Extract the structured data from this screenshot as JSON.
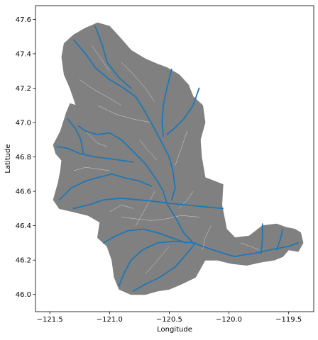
{
  "chart_data": {
    "type": "map",
    "xlabel": "Longitude",
    "ylabel": "Latitude",
    "xlim": [
      -121.62,
      -119.29
    ],
    "ylim": [
      45.9,
      47.68
    ],
    "x_ticks": [
      -121.5,
      -121.0,
      -120.5,
      -120.0,
      -119.5
    ],
    "x_tick_labels": [
      "−121.5",
      "−121.0",
      "−120.5",
      "−120.0",
      "−119.5"
    ],
    "y_ticks": [
      46.0,
      46.2,
      46.4,
      46.6,
      46.8,
      47.0,
      47.2,
      47.4,
      47.6
    ],
    "y_tick_labels": [
      "46.0",
      "46.2",
      "46.4",
      "46.6",
      "46.8",
      "47.0",
      "47.2",
      "47.4",
      "47.6"
    ],
    "grid": false,
    "colors": {
      "basin_fill": "#808080",
      "major_river": "#1f77b4",
      "minor_stream": "#d4d4d4"
    },
    "basin_boundary": [
      [
        -121.47,
        46.87
      ],
      [
        -121.41,
        46.95
      ],
      [
        -121.36,
        47.06
      ],
      [
        -121.33,
        47.11
      ],
      [
        -121.28,
        47.1
      ],
      [
        -121.33,
        47.2
      ],
      [
        -121.38,
        47.28
      ],
      [
        -121.4,
        47.38
      ],
      [
        -121.38,
        47.46
      ],
      [
        -121.3,
        47.51
      ],
      [
        -121.2,
        47.55
      ],
      [
        -121.1,
        47.58
      ],
      [
        -121.0,
        47.56
      ],
      [
        -120.92,
        47.5
      ],
      [
        -120.82,
        47.42
      ],
      [
        -120.7,
        47.37
      ],
      [
        -120.6,
        47.34
      ],
      [
        -120.52,
        47.32
      ],
      [
        -120.42,
        47.28
      ],
      [
        -120.34,
        47.22
      ],
      [
        -120.3,
        47.15
      ],
      [
        -120.22,
        47.1
      ],
      [
        -120.2,
        47.0
      ],
      [
        -120.24,
        46.9
      ],
      [
        -120.23,
        46.8
      ],
      [
        -120.2,
        46.68
      ],
      [
        -120.05,
        46.64
      ],
      [
        -120.06,
        46.52
      ],
      [
        -120.02,
        46.38
      ],
      [
        -119.95,
        46.33
      ],
      [
        -119.83,
        46.34
      ],
      [
        -119.72,
        46.4
      ],
      [
        -119.6,
        46.41
      ],
      [
        -119.52,
        46.39
      ],
      [
        -119.45,
        46.38
      ],
      [
        -119.4,
        46.36
      ],
      [
        -119.38,
        46.3
      ],
      [
        -119.42,
        46.25
      ],
      [
        -119.5,
        46.26
      ],
      [
        -119.55,
        46.22
      ],
      [
        -119.62,
        46.2
      ],
      [
        -119.72,
        46.19
      ],
      [
        -119.85,
        46.17
      ],
      [
        -119.98,
        46.18
      ],
      [
        -120.1,
        46.2
      ],
      [
        -120.2,
        46.2
      ],
      [
        -120.28,
        46.1
      ],
      [
        -120.4,
        46.06
      ],
      [
        -120.5,
        46.03
      ],
      [
        -120.6,
        46.02
      ],
      [
        -120.7,
        46.0
      ],
      [
        -120.82,
        46.0
      ],
      [
        -120.92,
        46.03
      ],
      [
        -120.96,
        46.1
      ],
      [
        -120.98,
        46.2
      ],
      [
        -121.02,
        46.28
      ],
      [
        -121.1,
        46.33
      ],
      [
        -121.08,
        46.42
      ],
      [
        -121.18,
        46.46
      ],
      [
        -121.3,
        46.48
      ],
      [
        -121.42,
        46.5
      ],
      [
        -121.47,
        46.55
      ],
      [
        -121.43,
        46.65
      ],
      [
        -121.41,
        46.72
      ],
      [
        -121.4,
        46.78
      ],
      [
        -121.45,
        46.82
      ],
      [
        -121.47,
        46.87
      ]
    ],
    "major_rivers": [
      [
        [
          -121.26,
          46.98
        ],
        [
          -121.2,
          46.95
        ],
        [
          -121.1,
          46.93
        ],
        [
          -121.0,
          46.94
        ],
        [
          -120.9,
          46.9
        ],
        [
          -120.8,
          46.83
        ],
        [
          -120.7,
          46.76
        ],
        [
          -120.6,
          46.66
        ],
        [
          -120.55,
          46.6
        ],
        [
          -120.52,
          46.53
        ],
        [
          -120.45,
          46.45
        ],
        [
          -120.38,
          46.36
        ],
        [
          -120.3,
          46.3
        ],
        [
          -120.18,
          46.27
        ],
        [
          -120.05,
          46.24
        ],
        [
          -119.95,
          46.22
        ],
        [
          -119.88,
          46.23
        ],
        [
          -119.78,
          46.24
        ],
        [
          -119.65,
          46.26
        ],
        [
          -119.5,
          46.28
        ],
        [
          -119.42,
          46.3
        ]
      ],
      [
        [
          -121.3,
          47.48
        ],
        [
          -121.2,
          47.4
        ],
        [
          -121.12,
          47.32
        ],
        [
          -121.0,
          47.25
        ],
        [
          -120.88,
          47.2
        ],
        [
          -120.78,
          47.15
        ],
        [
          -120.7,
          47.06
        ],
        [
          -120.62,
          46.96
        ],
        [
          -120.56,
          46.88
        ],
        [
          -120.5,
          46.8
        ],
        [
          -120.47,
          46.72
        ],
        [
          -120.45,
          46.62
        ],
        [
          -120.48,
          46.55
        ]
      ],
      [
        [
          -121.12,
          47.56
        ],
        [
          -121.06,
          47.45
        ],
        [
          -121.02,
          47.35
        ],
        [
          -120.92,
          47.26
        ],
        [
          -120.82,
          47.2
        ]
      ],
      [
        [
          -120.48,
          47.31
        ],
        [
          -120.52,
          47.2
        ],
        [
          -120.55,
          47.1
        ],
        [
          -120.56,
          47.0
        ],
        [
          -120.55,
          46.92
        ]
      ],
      [
        [
          -120.25,
          47.2
        ],
        [
          -120.3,
          47.1
        ],
        [
          -120.38,
          47.02
        ],
        [
          -120.45,
          46.97
        ],
        [
          -120.52,
          46.93
        ]
      ],
      [
        [
          -121.44,
          46.86
        ],
        [
          -121.35,
          46.85
        ],
        [
          -121.25,
          46.82
        ],
        [
          -121.12,
          46.8
        ],
        [
          -121.0,
          46.79
        ],
        [
          -120.9,
          46.78
        ],
        [
          -120.8,
          46.77
        ]
      ],
      [
        [
          -121.42,
          46.55
        ],
        [
          -121.32,
          46.62
        ],
        [
          -121.2,
          46.66
        ],
        [
          -121.1,
          46.68
        ],
        [
          -120.98,
          46.7
        ],
        [
          -120.88,
          46.68
        ],
        [
          -120.75,
          46.66
        ],
        [
          -120.65,
          46.63
        ]
      ],
      [
        [
          -121.3,
          46.5
        ],
        [
          -121.18,
          46.52
        ],
        [
          -121.05,
          46.55
        ],
        [
          -120.9,
          46.56
        ],
        [
          -120.75,
          46.55
        ],
        [
          -120.6,
          46.54
        ],
        [
          -120.5,
          46.53
        ],
        [
          -120.35,
          46.52
        ],
        [
          -120.2,
          46.51
        ],
        [
          -120.05,
          46.5
        ]
      ],
      [
        [
          -121.05,
          46.3
        ],
        [
          -120.95,
          46.34
        ],
        [
          -120.85,
          46.37
        ],
        [
          -120.72,
          46.38
        ],
        [
          -120.6,
          46.36
        ],
        [
          -120.48,
          46.33
        ],
        [
          -120.36,
          46.3
        ]
      ],
      [
        [
          -120.92,
          46.05
        ],
        [
          -120.88,
          46.12
        ],
        [
          -120.82,
          46.2
        ],
        [
          -120.72,
          46.26
        ],
        [
          -120.6,
          46.3
        ],
        [
          -120.45,
          46.31
        ],
        [
          -120.3,
          46.3
        ]
      ],
      [
        [
          -120.8,
          46.02
        ],
        [
          -120.7,
          46.06
        ],
        [
          -120.58,
          46.1
        ],
        [
          -120.45,
          46.16
        ],
        [
          -120.35,
          46.24
        ],
        [
          -120.28,
          46.3
        ]
      ],
      [
        [
          -119.72,
          46.41
        ],
        [
          -119.72,
          46.32
        ],
        [
          -119.73,
          46.24
        ]
      ],
      [
        [
          -119.55,
          46.38
        ],
        [
          -119.57,
          46.32
        ],
        [
          -119.6,
          46.26
        ]
      ],
      [
        [
          -121.35,
          47.02
        ],
        [
          -121.28,
          46.96
        ],
        [
          -121.24,
          46.9
        ],
        [
          -121.22,
          46.82
        ]
      ]
    ],
    "minor_streams": [
      [
        [
          -121.1,
          47.1
        ],
        [
          -120.95,
          47.05
        ],
        [
          -120.8,
          47.02
        ],
        [
          -120.65,
          47.0
        ]
      ],
      [
        [
          -121.25,
          47.25
        ],
        [
          -121.15,
          47.2
        ],
        [
          -121.02,
          47.15
        ],
        [
          -120.9,
          47.1
        ]
      ],
      [
        [
          -120.9,
          47.35
        ],
        [
          -120.8,
          47.28
        ],
        [
          -120.7,
          47.2
        ],
        [
          -120.62,
          47.12
        ]
      ],
      [
        [
          -120.35,
          46.95
        ],
        [
          -120.4,
          46.85
        ],
        [
          -120.45,
          46.75
        ]
      ],
      [
        [
          -121.3,
          46.72
        ],
        [
          -121.2,
          46.74
        ],
        [
          -121.1,
          46.73
        ],
        [
          -121.0,
          46.72
        ]
      ],
      [
        [
          -120.9,
          46.45
        ],
        [
          -120.78,
          46.44
        ],
        [
          -120.65,
          46.43
        ],
        [
          -120.52,
          46.44
        ],
        [
          -120.4,
          46.46
        ],
        [
          -120.25,
          46.45
        ]
      ],
      [
        [
          -120.7,
          46.12
        ],
        [
          -120.62,
          46.18
        ],
        [
          -120.55,
          46.24
        ],
        [
          -120.5,
          46.28
        ]
      ],
      [
        [
          -120.3,
          46.6
        ],
        [
          -120.35,
          46.55
        ],
        [
          -120.42,
          46.5
        ]
      ],
      [
        [
          -121.0,
          46.48
        ],
        [
          -120.9,
          46.52
        ],
        [
          -120.8,
          46.5
        ]
      ],
      [
        [
          -119.9,
          46.3
        ],
        [
          -119.82,
          46.28
        ],
        [
          -119.75,
          46.26
        ]
      ],
      [
        [
          -120.15,
          46.4
        ],
        [
          -120.2,
          46.33
        ],
        [
          -120.22,
          46.26
        ]
      ],
      [
        [
          -121.2,
          46.95
        ],
        [
          -121.1,
          46.88
        ],
        [
          -121.02,
          46.86
        ]
      ],
      [
        [
          -120.75,
          46.9
        ],
        [
          -120.68,
          46.84
        ],
        [
          -120.6,
          46.78
        ]
      ],
      [
        [
          -120.62,
          46.6
        ],
        [
          -120.7,
          46.5
        ],
        [
          -120.78,
          46.4
        ]
      ],
      [
        [
          -121.15,
          47.45
        ],
        [
          -121.08,
          47.38
        ],
        [
          -121.0,
          47.3
        ]
      ]
    ]
  }
}
